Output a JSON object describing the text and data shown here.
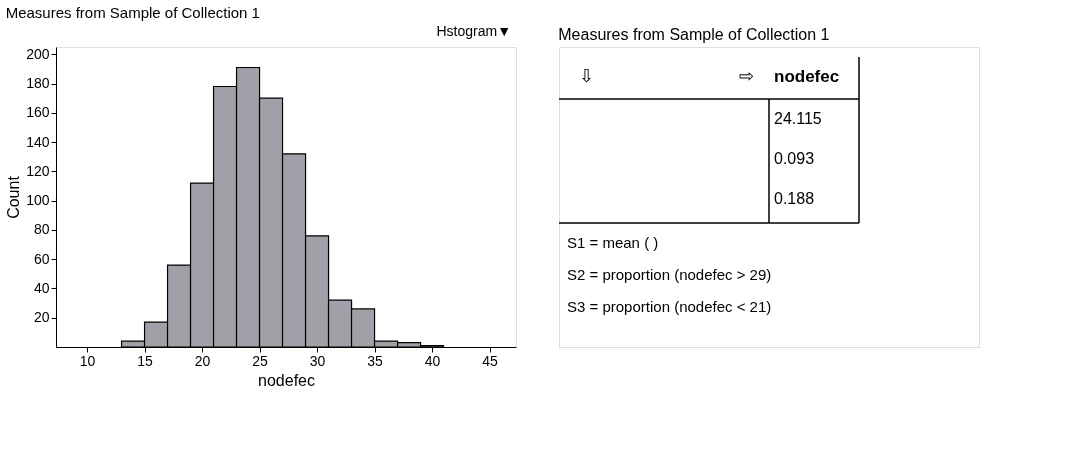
{
  "chart_data": [
    {
      "type": "histogram",
      "title": "Measures from Sample of Collection 1",
      "xlabel": "nodefec",
      "ylabel": "Count",
      "bins": [
        13,
        15,
        17,
        19,
        21,
        23,
        25,
        27,
        29,
        31,
        33,
        35,
        37,
        39,
        41
      ],
      "values": [
        4,
        17,
        56,
        112,
        178,
        191,
        170,
        132,
        76,
        32,
        26,
        4,
        3,
        1
      ],
      "color": "#a0a0a8",
      "xlim": [
        7.3,
        47.3
      ],
      "xticks": [
        10,
        15,
        20,
        25,
        30,
        35,
        40,
        45
      ],
      "ylim": [
        0,
        205
      ],
      "yticks": [
        20,
        40,
        60,
        80,
        100,
        120,
        140,
        160,
        180,
        200
      ],
      "grid": false,
      "annotations": [
        "Hstogram▼"
      ]
    },
    {
      "type": "other",
      "title": "Measures from Sample of Collection 1",
      "annotations": [
        "⇩",
        "⇨",
        "nodefec",
        "24.115",
        "0.093",
        "0.188",
        "S1 = mean (   )",
        "S2 = proportion (nodefec > 29)",
        "S3 = proportion (nodefec < 21)"
      ]
    }
  ]
}
